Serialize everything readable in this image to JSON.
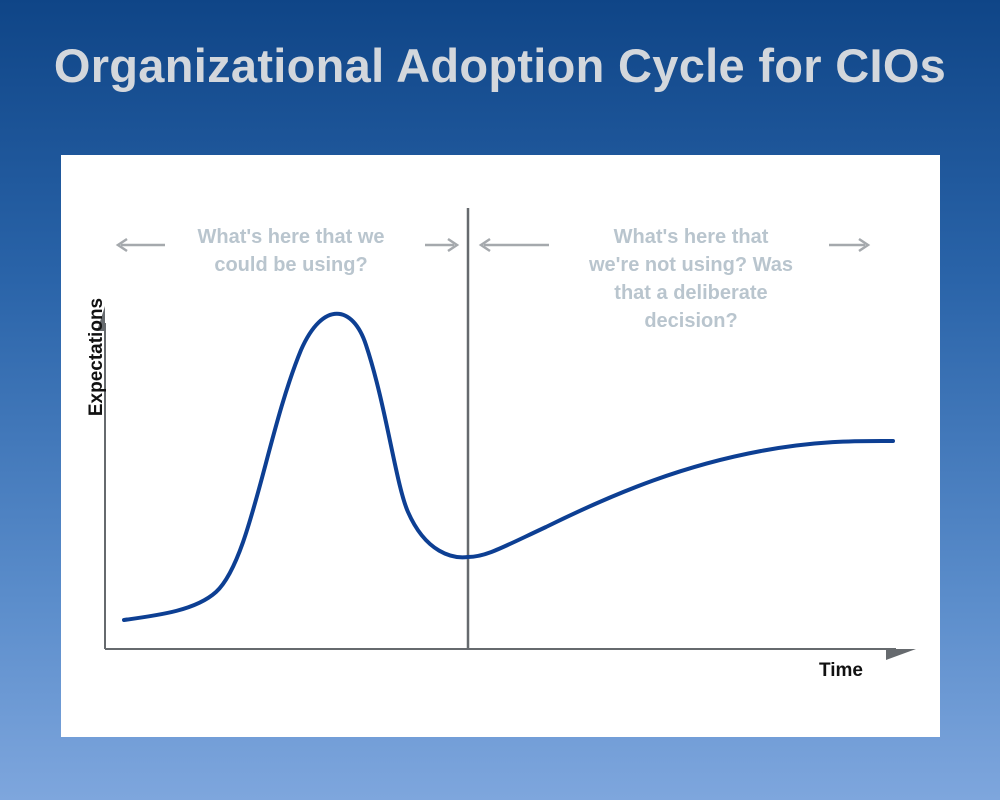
{
  "slide": {
    "title": "Organizational Adoption Cycle for CIOs"
  },
  "diagram": {
    "axes": {
      "x_label": "Time",
      "y_label": "Expectations"
    },
    "phases": [
      {
        "text": "What's here that we\ncould be using?"
      },
      {
        "text": "What's here that\nwe're not using? Was\nthat a deliberate\ndecision?"
      }
    ],
    "colors": {
      "curve": "#0d3f93",
      "axis": "#666a6e",
      "arrows": "#a5a9ad",
      "note_text": "#b9c5ce"
    }
  }
}
